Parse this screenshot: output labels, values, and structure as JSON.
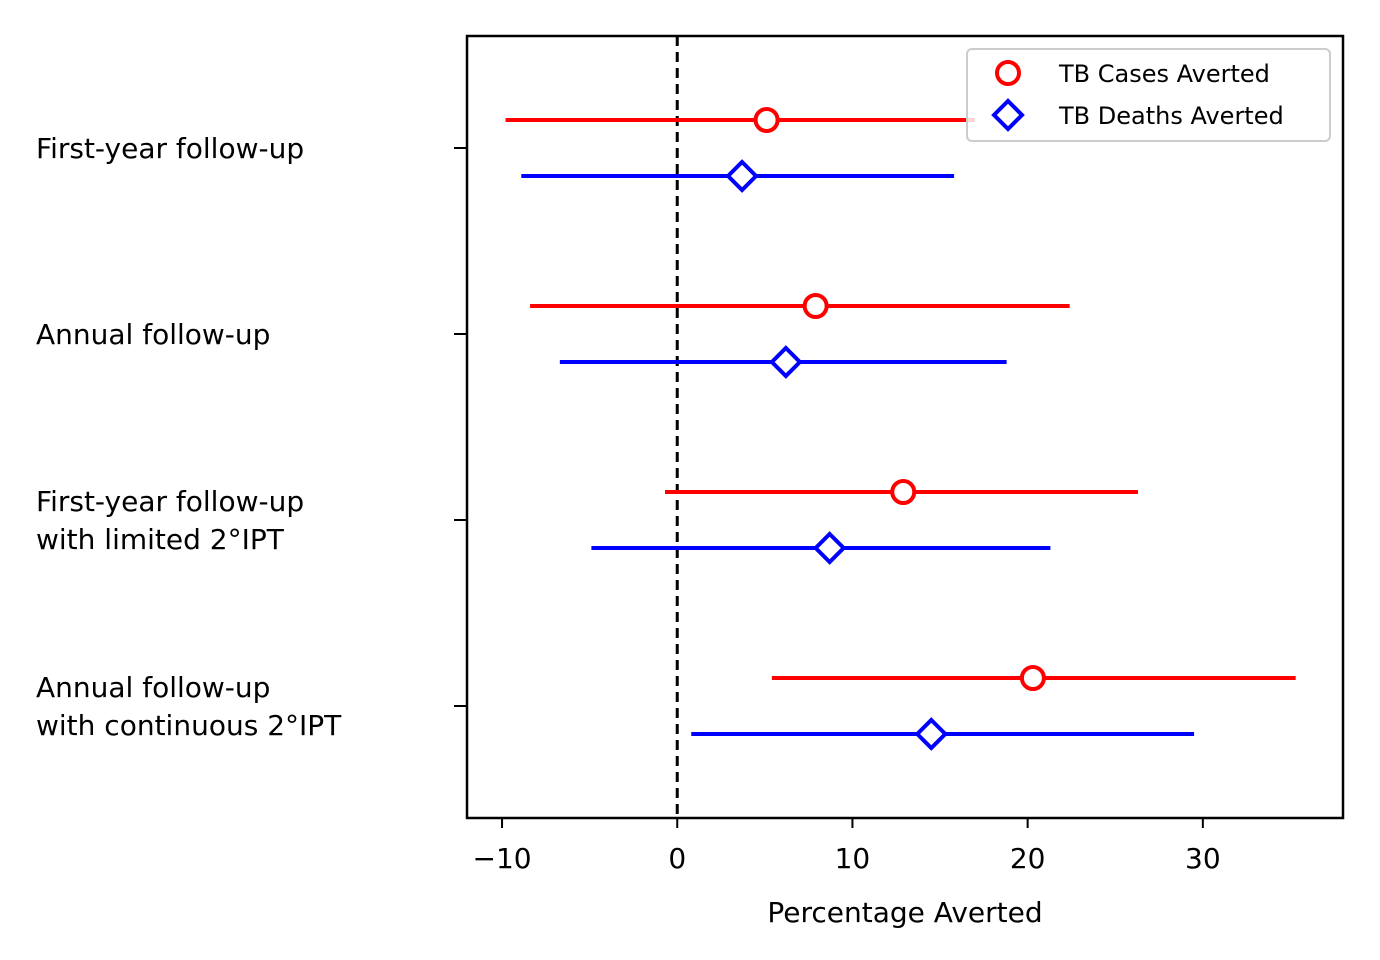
{
  "chart_data": {
    "type": "forest-plot",
    "xlabel": "Percentage Averted",
    "xlim": [
      -12,
      38
    ],
    "xticks": [
      -10,
      0,
      10,
      20,
      30
    ],
    "xtick_labels": [
      "−10",
      "0",
      "10",
      "20",
      "30"
    ],
    "reference_line_x": 0,
    "legend_position": "top-right",
    "categories": [
      [
        "First-year follow-up"
      ],
      [
        "Annual follow-up"
      ],
      [
        "First-year follow-up",
        "with limited 2°IPT"
      ],
      [
        "Annual follow-up",
        "with continuous 2°IPT"
      ]
    ],
    "series": [
      {
        "name": "TB Cases Averted",
        "color": "#ff0000",
        "marker": "circle",
        "points": [
          {
            "estimate": 5.1,
            "lower": -9.8,
            "upper": 17.0
          },
          {
            "estimate": 7.9,
            "lower": -8.4,
            "upper": 22.4
          },
          {
            "estimate": 12.9,
            "lower": -0.7,
            "upper": 26.3
          },
          {
            "estimate": 20.3,
            "lower": 5.4,
            "upper": 35.3
          }
        ]
      },
      {
        "name": "TB Deaths Averted",
        "color": "#0000ff",
        "marker": "diamond",
        "points": [
          {
            "estimate": 3.7,
            "lower": -8.9,
            "upper": 15.8
          },
          {
            "estimate": 6.2,
            "lower": -6.7,
            "upper": 18.8
          },
          {
            "estimate": 8.7,
            "lower": -4.9,
            "upper": 21.3
          },
          {
            "estimate": 14.5,
            "lower": 0.8,
            "upper": 29.5
          }
        ]
      }
    ]
  }
}
